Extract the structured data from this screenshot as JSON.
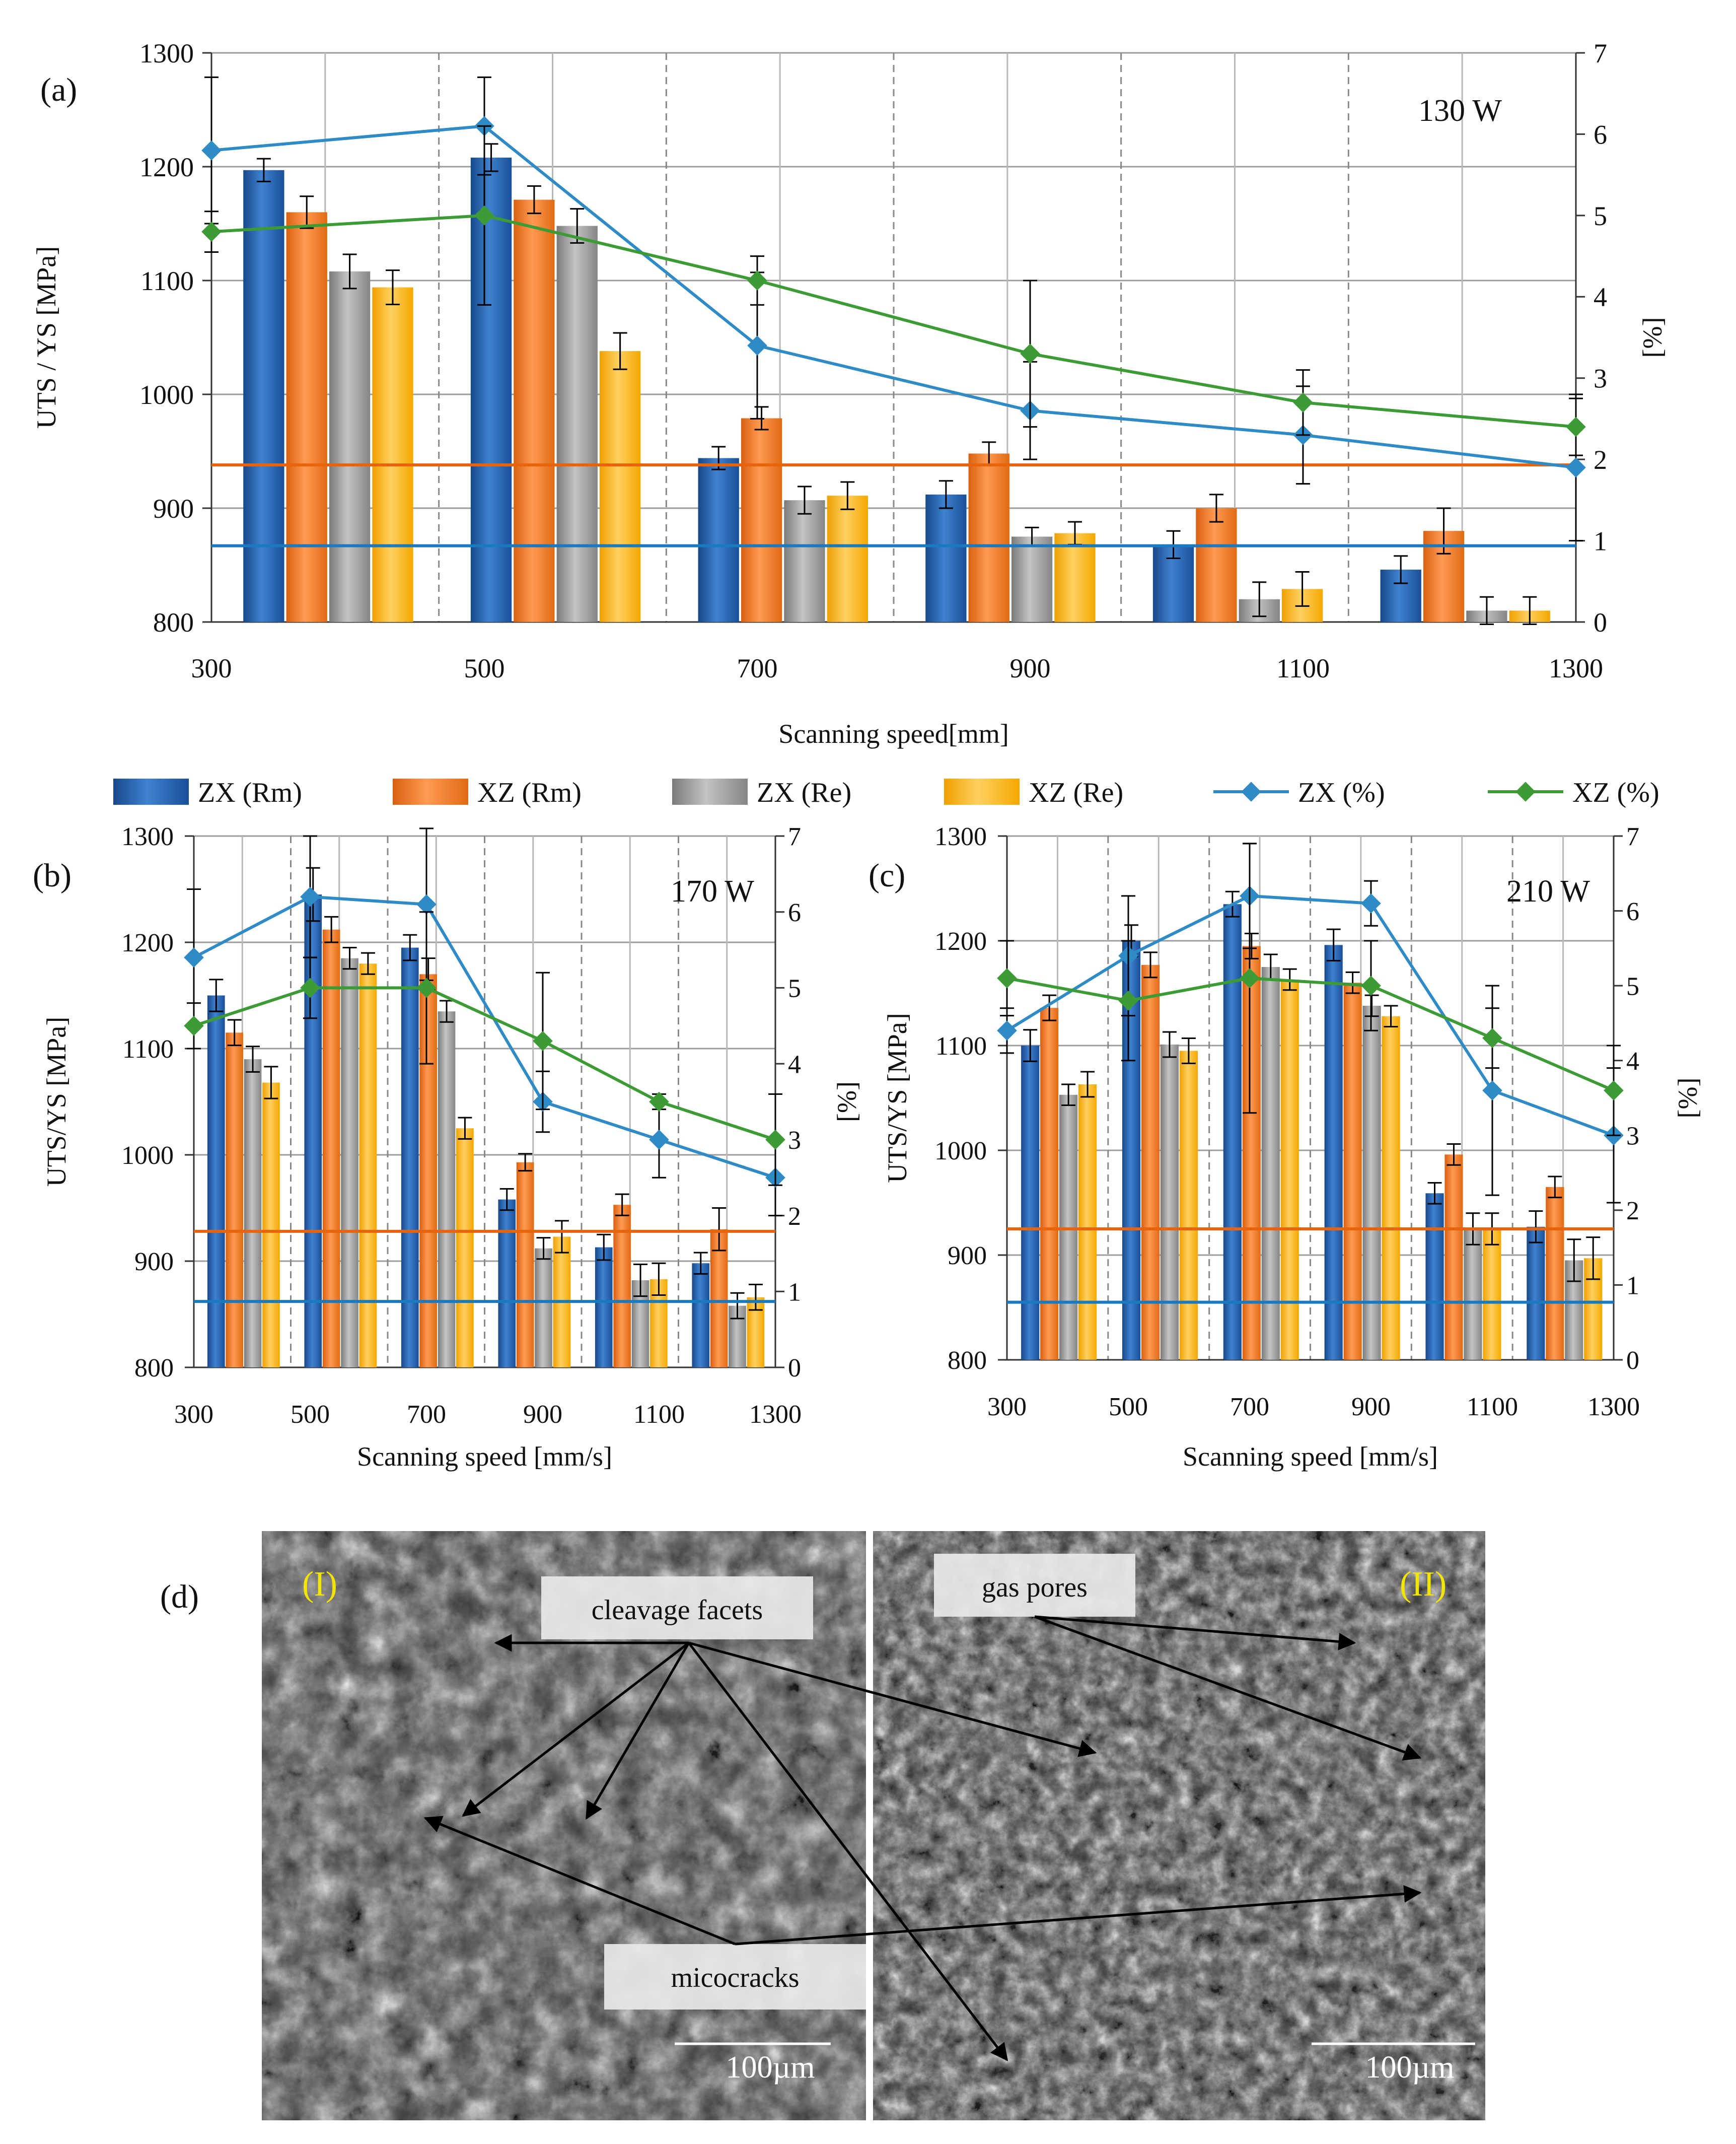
{
  "colors": {
    "zx_rm": "#1f5fb0",
    "xz_rm": "#f07a28",
    "zx_re": "#9a9a9a",
    "xz_re": "#f9b50f",
    "zx_pct": "#2e8bc6",
    "xz_pct": "#3d9b35",
    "ref_orange": "#e8640c",
    "ref_blue": "#1a7ac0",
    "grid": "#9c9c9c"
  },
  "legend": [
    {
      "label": "ZX (Rm)",
      "kind": "bar",
      "color_key": "zx_rm"
    },
    {
      "label": "XZ (Rm)",
      "kind": "bar",
      "color_key": "xz_rm"
    },
    {
      "label": "ZX (Re)",
      "kind": "bar",
      "color_key": "zx_re"
    },
    {
      "label": "XZ (Re)",
      "kind": "bar",
      "color_key": "xz_re"
    },
    {
      "label": "ZX (%)",
      "kind": "line",
      "color_key": "zx_pct"
    },
    {
      "label": "XZ (%)",
      "kind": "line",
      "color_key": "xz_pct"
    }
  ],
  "chart_data": [
    {
      "panel": "(a)",
      "type": "bar",
      "annotation": "130 W",
      "xlabel": "Scanning speed[mm]",
      "ylabel": "UTS / YS [MPa]",
      "y2label": "[%]",
      "ylim": [
        800,
        1300
      ],
      "y2lim": [
        0,
        7
      ],
      "yticks": [
        "800",
        "900",
        "1000",
        "1100",
        "1200",
        "1300"
      ],
      "y2ticks": [
        "0",
        "1",
        "2",
        "3",
        "4",
        "5",
        "6",
        "7"
      ],
      "xticks": [
        "300",
        "500",
        "700",
        "900",
        "1100",
        "1300"
      ],
      "categories": [
        "300",
        "500",
        "700",
        "900",
        "1100",
        "1300"
      ],
      "series": [
        {
          "name": "ZX (Rm)",
          "values": [
            1197,
            1208,
            944,
            912,
            868,
            846
          ],
          "errors": [
            10,
            12,
            10,
            12,
            12,
            12
          ]
        },
        {
          "name": "XZ (Rm)",
          "values": [
            1160,
            1171,
            979,
            948,
            900,
            880
          ],
          "errors": [
            14,
            12,
            10,
            10,
            12,
            20
          ]
        },
        {
          "name": "ZX (Re)",
          "values": [
            1108,
            1148,
            907,
            875,
            820,
            810
          ],
          "errors": [
            15,
            15,
            12,
            8,
            15,
            12
          ]
        },
        {
          "name": "XZ (Re)",
          "values": [
            1094,
            1038,
            911,
            878,
            829,
            810
          ],
          "errors": [
            15,
            16,
            12,
            10,
            15,
            12
          ]
        }
      ],
      "lines": [
        {
          "name": "ZX (%)",
          "values": [
            5.8,
            6.1,
            3.4,
            2.6,
            2.3,
            1.9
          ],
          "errors": [
            0.9,
            0.6,
            0.9,
            0.6,
            0.6,
            0.9
          ]
        },
        {
          "name": "XZ (%)",
          "values": [
            4.8,
            5.0,
            4.2,
            3.3,
            2.7,
            2.4
          ],
          "errors": [
            0.25,
            1.1,
            0.3,
            0.9,
            0.4,
            0.35
          ]
        }
      ],
      "reference_lines": [
        {
          "color_key": "ref_orange",
          "value": 938
        },
        {
          "color_key": "ref_blue",
          "value": 867
        }
      ]
    },
    {
      "panel": "(b)",
      "type": "bar",
      "annotation": "170 W",
      "xlabel": "Scanning speed [mm/s]",
      "ylabel": "UTS/YS [MPa]",
      "y2label": "[%]",
      "ylim": [
        800,
        1300
      ],
      "y2lim": [
        0,
        7
      ],
      "yticks": [
        "800",
        "900",
        "1000",
        "1100",
        "1200",
        "1300"
      ],
      "y2ticks": [
        "0",
        "1",
        "2",
        "3",
        "4",
        "5",
        "6",
        "7"
      ],
      "xticks": [
        "300",
        "500",
        "700",
        "900",
        "1100",
        "1300"
      ],
      "categories": [
        "300",
        "500",
        "700",
        "900",
        "1100",
        "1300"
      ],
      "series": [
        {
          "name": "ZX (Rm)",
          "values": [
            1150,
            1245,
            1195,
            958,
            913,
            898
          ],
          "errors": [
            15,
            25,
            12,
            10,
            12,
            10
          ]
        },
        {
          "name": "XZ (Rm)",
          "values": [
            1115,
            1212,
            1170,
            993,
            953,
            930
          ],
          "errors": [
            12,
            12,
            15,
            8,
            10,
            20
          ]
        },
        {
          "name": "ZX (Re)",
          "values": [
            1090,
            1185,
            1135,
            912,
            882,
            858
          ],
          "errors": [
            12,
            10,
            10,
            10,
            15,
            12
          ]
        },
        {
          "name": "XZ (Re)",
          "values": [
            1068,
            1180,
            1025,
            923,
            883,
            866
          ],
          "errors": [
            15,
            10,
            10,
            15,
            15,
            12
          ]
        }
      ],
      "lines": [
        {
          "name": "ZX (%)",
          "values": [
            5.4,
            6.2,
            6.1,
            3.5,
            3.0,
            2.5
          ],
          "errors": [
            0.9,
            0.8,
            1.0,
            0.4,
            0.5,
            0.5
          ]
        },
        {
          "name": "XZ (%)",
          "values": [
            4.5,
            5.0,
            5.0,
            4.3,
            3.5,
            3.0
          ],
          "errors": [
            0.3,
            0.4,
            1.0,
            0.9,
            0.1,
            0.6
          ]
        }
      ],
      "reference_lines": [
        {
          "color_key": "ref_orange",
          "value": 928
        },
        {
          "color_key": "ref_blue",
          "value": 862
        }
      ]
    },
    {
      "panel": "(c)",
      "type": "bar",
      "annotation": "210 W",
      "xlabel": "Scanning speed [mm/s]",
      "ylabel": "UTS/YS [MPa]",
      "y2label": "[%]",
      "ylim": [
        800,
        1300
      ],
      "y2lim": [
        0,
        7
      ],
      "yticks": [
        "800",
        "900",
        "1000",
        "1100",
        "1200",
        "1300"
      ],
      "y2ticks": [
        "0",
        "1",
        "2",
        "3",
        "4",
        "5",
        "6",
        "7"
      ],
      "xticks": [
        "300",
        "500",
        "700",
        "900",
        "1100",
        "1300"
      ],
      "categories": [
        "300",
        "500",
        "700",
        "900",
        "1100",
        "1300"
      ],
      "series": [
        {
          "name": "ZX (Rm)",
          "values": [
            1100,
            1200,
            1235,
            1196,
            959,
            927
          ],
          "errors": [
            15,
            15,
            12,
            15,
            10,
            15
          ]
        },
        {
          "name": "XZ (Rm)",
          "values": [
            1136,
            1177,
            1195,
            1160,
            996,
            965
          ],
          "errors": [
            12,
            12,
            12,
            10,
            10,
            10
          ]
        },
        {
          "name": "ZX (Re)",
          "values": [
            1053,
            1101,
            1175,
            1138,
            925,
            895
          ],
          "errors": [
            10,
            12,
            12,
            10,
            15,
            20
          ]
        },
        {
          "name": "XZ (Re)",
          "values": [
            1063,
            1095,
            1163,
            1128,
            925,
            897
          ],
          "errors": [
            12,
            12,
            10,
            10,
            15,
            20
          ]
        }
      ],
      "lines": [
        {
          "name": "ZX (%)",
          "values": [
            4.4,
            5.4,
            6.2,
            6.1,
            3.6,
            3.0
          ],
          "errors": [
            0.3,
            0.8,
            0.7,
            0.3,
            1.4,
            0.9
          ]
        },
        {
          "name": "XZ (%)",
          "values": [
            5.1,
            4.8,
            5.1,
            5.0,
            4.3,
            3.6
          ],
          "errors": [
            0.5,
            0.8,
            1.8,
            0.6,
            0.4,
            0.6
          ]
        }
      ],
      "reference_lines": [
        {
          "color_key": "ref_orange",
          "value": 925
        },
        {
          "color_key": "ref_blue",
          "value": 855
        }
      ]
    }
  ],
  "micrograph": {
    "panel_label": "(d)",
    "left_label": "(I)",
    "right_label": "(II)",
    "callouts": {
      "cleavage": "cleavage facets",
      "pores": "gas pores",
      "cracks": "micocracks"
    },
    "scale_left": "100µm",
    "scale_right": "100µm"
  }
}
